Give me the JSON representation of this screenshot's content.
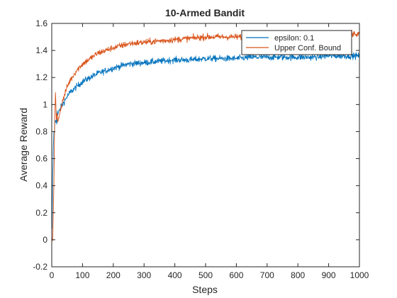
{
  "chart_data": {
    "type": "line",
    "title": "10-Armed Bandit",
    "xlabel": "Steps",
    "ylabel": "Average Reward",
    "xlim": [
      0,
      1000
    ],
    "ylim": [
      -0.2,
      1.6
    ],
    "xticks": [
      0,
      100,
      200,
      300,
      400,
      500,
      600,
      700,
      800,
      900,
      1000
    ],
    "yticks": [
      -0.2,
      0,
      0.2,
      0.4,
      0.6,
      0.8,
      1,
      1.2,
      1.4,
      1.6
    ],
    "grid": false,
    "legend_position": "top-right",
    "series": [
      {
        "name": "epsilon: 0.1",
        "color": "#0072BD",
        "x": [
          1,
          3,
          6,
          10,
          15,
          20,
          30,
          40,
          50,
          60,
          80,
          100,
          125,
          150,
          175,
          200,
          250,
          300,
          350,
          400,
          450,
          500,
          550,
          600,
          650,
          700,
          750,
          800,
          850,
          900,
          950,
          1000
        ],
        "y": [
          0.05,
          0.45,
          0.75,
          0.85,
          0.9,
          0.93,
          0.98,
          1.02,
          1.06,
          1.09,
          1.13,
          1.17,
          1.2,
          1.23,
          1.25,
          1.27,
          1.3,
          1.31,
          1.32,
          1.33,
          1.33,
          1.34,
          1.34,
          1.34,
          1.35,
          1.35,
          1.35,
          1.35,
          1.35,
          1.36,
          1.36,
          1.36
        ]
      },
      {
        "name": "Upper Conf. Bound",
        "color": "#D95319",
        "x": [
          1,
          3,
          6,
          10,
          12,
          15,
          20,
          30,
          40,
          50,
          60,
          80,
          100,
          125,
          150,
          175,
          200,
          250,
          300,
          350,
          400,
          450,
          500,
          550,
          600,
          650,
          700,
          750,
          800,
          850,
          900,
          950,
          1000
        ],
        "y": [
          -0.05,
          0.02,
          0.3,
          0.95,
          1.05,
          0.9,
          0.88,
          0.98,
          1.06,
          1.13,
          1.18,
          1.25,
          1.3,
          1.34,
          1.38,
          1.4,
          1.42,
          1.45,
          1.46,
          1.47,
          1.48,
          1.49,
          1.5,
          1.5,
          1.5,
          1.5,
          1.51,
          1.51,
          1.51,
          1.51,
          1.52,
          1.52,
          1.52
        ]
      }
    ]
  }
}
